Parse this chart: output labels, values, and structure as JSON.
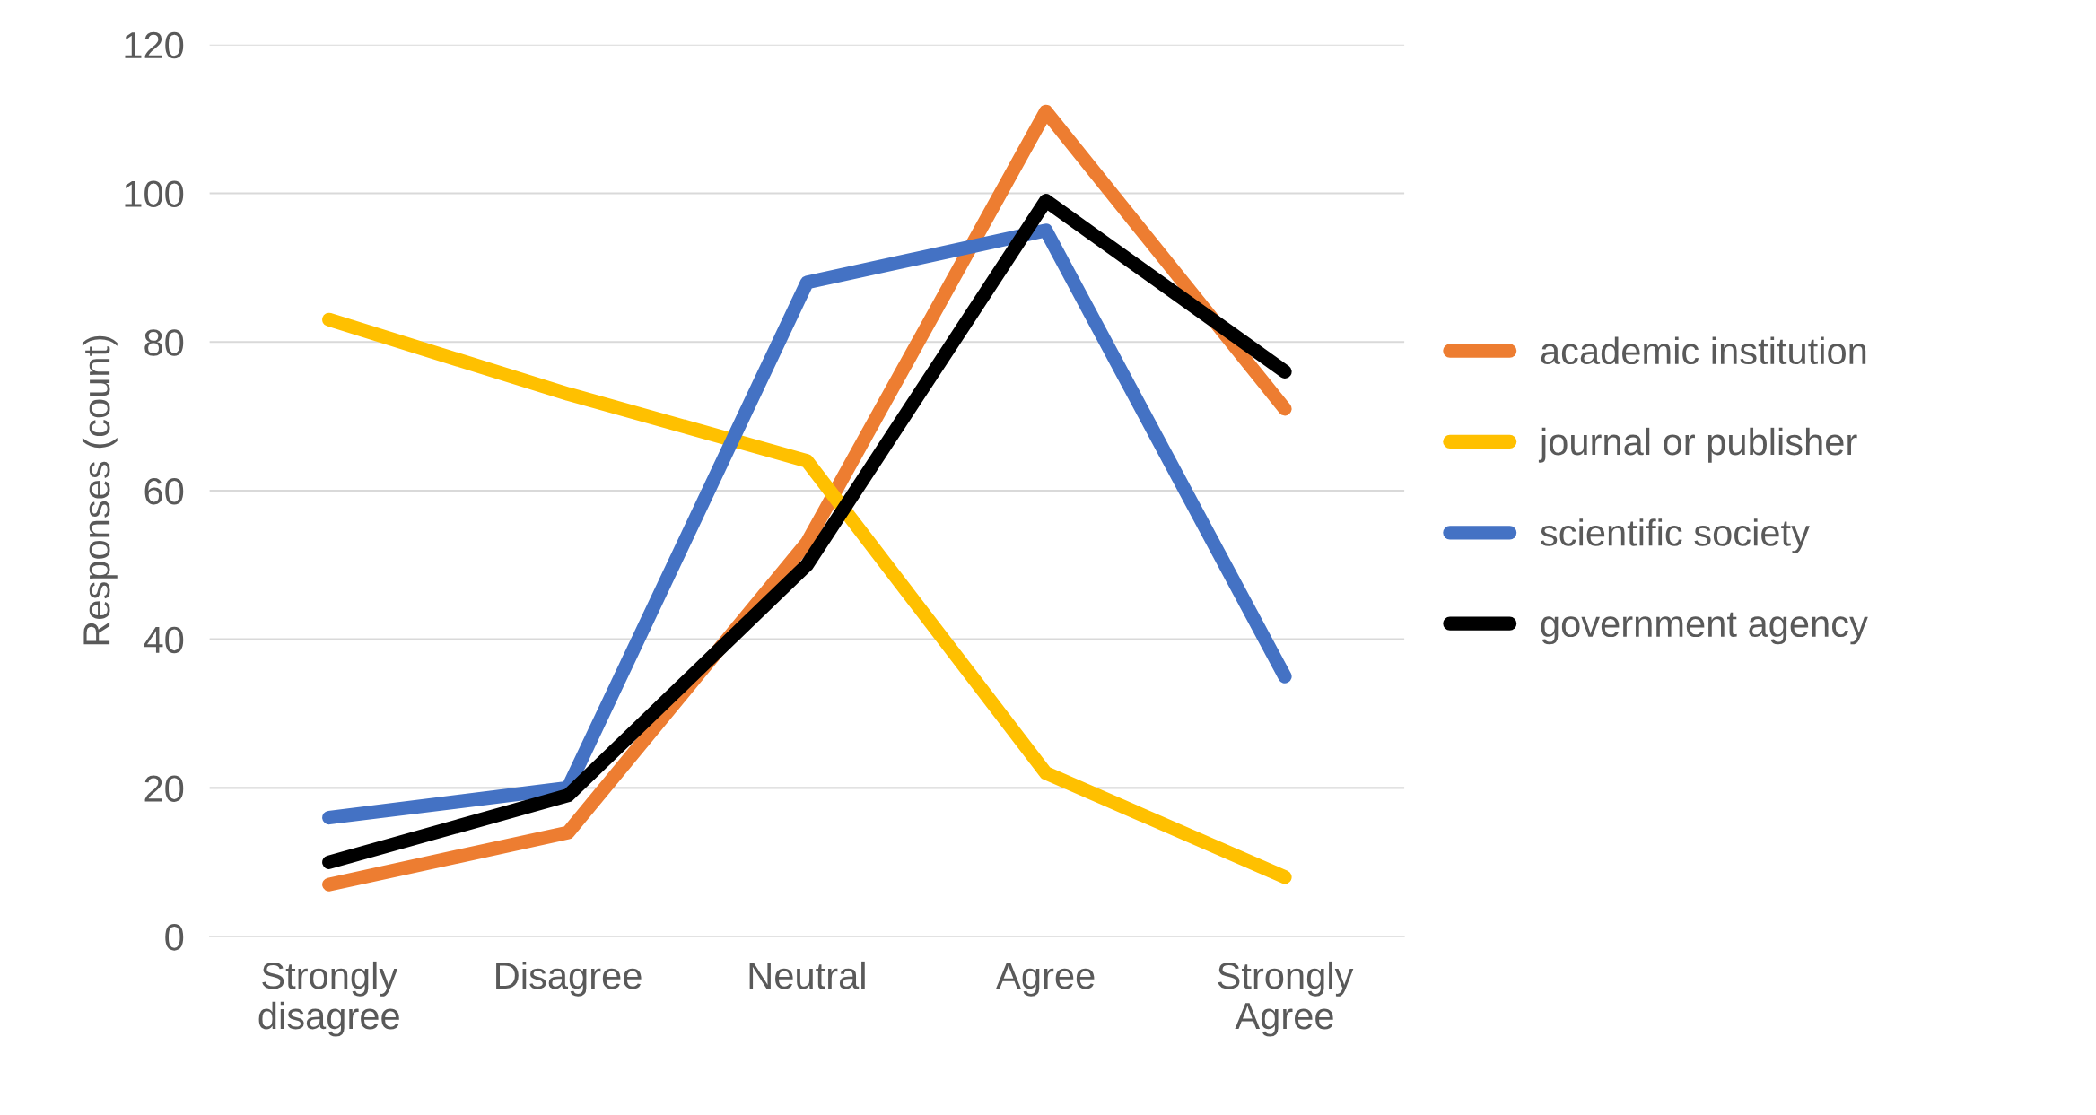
{
  "chart_data": {
    "type": "line",
    "ylabel": "Responses (count)",
    "categories": [
      "Strongly\ndisagree",
      "Disagree",
      "Neutral",
      "Agree",
      "Strongly\nAgree"
    ],
    "series": [
      {
        "name": "academic institution",
        "color": "#ed7d31",
        "values": [
          7,
          14,
          53,
          111,
          71
        ]
      },
      {
        "name": "journal or publisher",
        "color": "#ffc000",
        "values": [
          83,
          73,
          64,
          22,
          8
        ]
      },
      {
        "name": "scientific society",
        "color": "#4472c4",
        "values": [
          16,
          20,
          88,
          95,
          35
        ]
      },
      {
        "name": "government agency",
        "color": "#000000",
        "values": [
          10,
          19,
          50,
          99,
          76
        ]
      }
    ],
    "ylim": [
      0,
      120
    ],
    "yticks": [
      0,
      20,
      40,
      60,
      80,
      100,
      120
    ],
    "grid": "y",
    "legend": "right",
    "marker": "none",
    "line_style": "solid"
  }
}
